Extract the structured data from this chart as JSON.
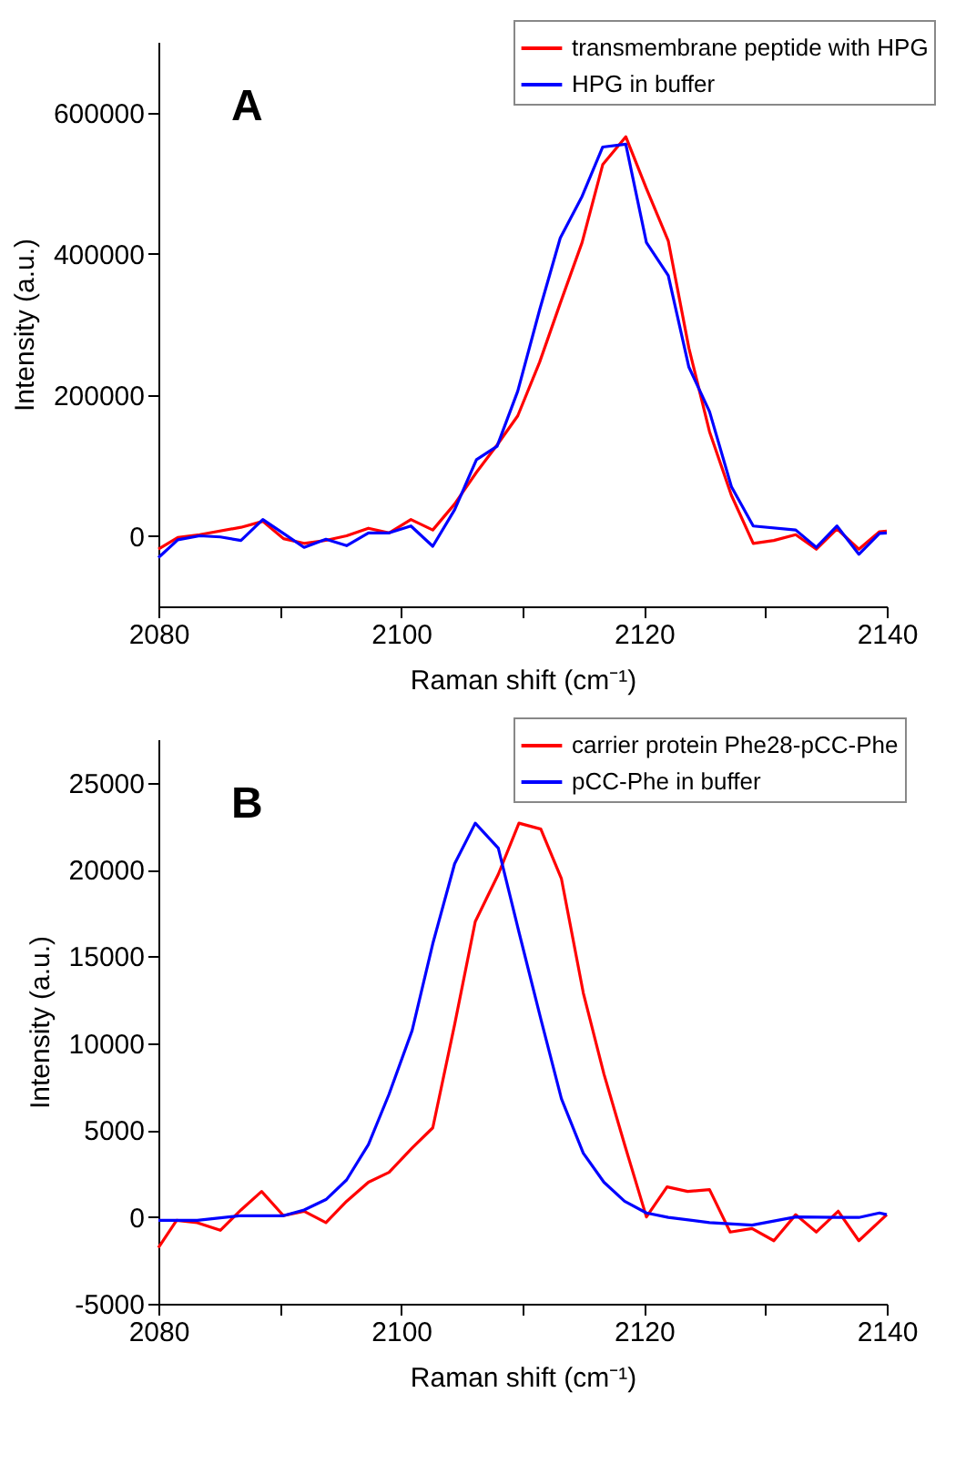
{
  "chart_data": [
    {
      "type": "line",
      "title": "A",
      "xlabel": "Raman shift (cm⁻¹)",
      "ylabel": "Intensity (a.u.)",
      "xlim": [
        2080,
        2140
      ],
      "ylim": [
        -100000,
        700000
      ],
      "xticks": [
        2080,
        {
          "value": 2090,
          "label": null
        },
        2100,
        {
          "value": 2110,
          "label": null
        },
        2120,
        {
          "value": 2130,
          "label": null
        },
        2140
      ],
      "yticks": [
        0,
        200000,
        400000,
        600000
      ],
      "grid": false,
      "legend": "top right",
      "marker": "none",
      "line_style": "solid",
      "series": [
        {
          "name": "transmembrane peptide with HPG",
          "color": "#ff0000",
          "x": [
            2080,
            2081.6,
            2083.4,
            2086.8,
            2088.6,
            2090.3,
            2092.0,
            2093.8,
            2095.5,
            2097.3,
            2099.0,
            2100.8,
            2102.6,
            2104.4,
            2106.2,
            2107.9,
            2109.6,
            2111.4,
            2113.1,
            2114.9,
            2116.6,
            2118.5,
            2120.2,
            2122.0,
            2123.7,
            2125.4,
            2127.2,
            2129.0,
            2130.7,
            2132.5,
            2134.2,
            2135.9,
            2137.7,
            2139.4,
            2140
          ],
          "values": [
            -19000,
            -2500,
            1600,
            12000,
            20500,
            -4000,
            -10700,
            -6500,
            0,
            10700,
            4000,
            23000,
            8200,
            45000,
            90000,
            128700,
            170000,
            246000,
            329500,
            415600,
            526000,
            565600,
            492000,
            418000,
            266000,
            147500,
            57400,
            -10700,
            -6600,
            1600,
            -19000,
            9800,
            -19000,
            5700,
            6500
          ]
        },
        {
          "name": "HPG in buffer",
          "color": "#0000ff",
          "x": [
            2080,
            2081.6,
            2083.4,
            2085.1,
            2086.8,
            2088.6,
            2090.3,
            2092.0,
            2093.8,
            2095.5,
            2097.3,
            2099.0,
            2100.8,
            2102.6,
            2104.4,
            2106.2,
            2107.9,
            2109.6,
            2111.4,
            2113.1,
            2114.9,
            2116.6,
            2118.5,
            2120.2,
            2122.0,
            2123.7,
            2125.4,
            2127.2,
            2129.0,
            2132.5,
            2134.2,
            2135.9,
            2137.7,
            2139.4,
            2140
          ],
          "values": [
            -31000,
            -5700,
            0,
            -1600,
            -6600,
            23000,
            3300,
            -16400,
            -4900,
            -13900,
            4100,
            4100,
            13900,
            -14800,
            36900,
            108000,
            127000,
            205000,
            320000,
            422000,
            481000,
            551000,
            555000,
            415600,
            369000,
            239000,
            176000,
            69700,
            13900,
            8200,
            -16400,
            13900,
            -26200,
            3300,
            4100
          ]
        }
      ]
    },
    {
      "type": "line",
      "title": "B",
      "xlabel": "Raman shift (cm⁻¹)",
      "ylabel": "Intensity (a.u.)",
      "xlim": [
        2080,
        2140
      ],
      "ylim": [
        -5000,
        27500
      ],
      "xticks": [
        2080,
        {
          "value": 2090,
          "label": null
        },
        2100,
        {
          "value": 2110,
          "label": null
        },
        2120,
        {
          "value": 2130,
          "label": null
        },
        2140
      ],
      "yticks": [
        -5000,
        0,
        5000,
        10000,
        15000,
        20000,
        25000
      ],
      "grid": false,
      "legend": "top right",
      "marker": "none",
      "line_style": "solid",
      "series": [
        {
          "name": "carrier protein Phe28-pCC-Phe",
          "color": "#ff0000",
          "x": [
            2080,
            2081.5,
            2083.2,
            2085.1,
            2086.8,
            2088.5,
            2090.3,
            2092.0,
            2093.8,
            2095.5,
            2097.3,
            2099.0,
            2100.9,
            2102.6,
            2104.4,
            2106.1,
            2108.0,
            2109.7,
            2111.5,
            2113.2,
            2115.0,
            2116.7,
            2118.4,
            2120.2,
            2121.9,
            2123.6,
            2125.4,
            2127.1,
            2128.9,
            2130.7,
            2132.5,
            2134.2,
            2136.0,
            2137.7,
            2140
          ],
          "values": [
            -1770,
            -200,
            -330,
            -770,
            400,
            1470,
            70,
            330,
            -330,
            900,
            2000,
            2570,
            3970,
            5130,
            11070,
            17000,
            19730,
            22670,
            22330,
            19470,
            12900,
            8230,
            4170,
            0,
            1730,
            1470,
            1570,
            -870,
            -670,
            -1370,
            130,
            -870,
            330,
            -1370,
            130
          ]
        },
        {
          "name": "pCC-Phe in buffer",
          "color": "#0000ff",
          "x": [
            2080,
            2083.2,
            2086.8,
            2090.3,
            2092.0,
            2093.8,
            2095.5,
            2097.3,
            2099.0,
            2100.9,
            2102.6,
            2104.4,
            2106.1,
            2108.0,
            2109.7,
            2111.5,
            2113.2,
            2115.0,
            2116.7,
            2118.4,
            2120.2,
            2122.0,
            2125.4,
            2128.9,
            2132.5,
            2136.0,
            2137.7,
            2139.4,
            2140
          ],
          "values": [
            -200,
            -200,
            70,
            70,
            400,
            1000,
            2130,
            4170,
            7070,
            10730,
            15730,
            20330,
            22670,
            21230,
            16400,
            11400,
            6800,
            3670,
            2000,
            900,
            230,
            -30,
            -330,
            -470,
            0,
            -30,
            -30,
            230,
            130
          ]
        }
      ]
    }
  ]
}
